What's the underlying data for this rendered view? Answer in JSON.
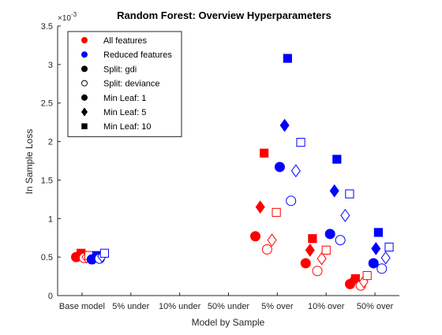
{
  "chart_data": {
    "type": "scatter",
    "title": "Random Forest: Overview Hyperparameters",
    "xlabel": "Model by Sample",
    "ylabel": "In Sample Loss",
    "y_exponent_label": "×10",
    "y_exponent_value": "-3",
    "categories": [
      "Base model",
      "5% under",
      "10% under",
      "50% under",
      "5% over",
      "10% over",
      "50% over"
    ],
    "x_ticks": [
      1,
      2,
      3,
      4,
      5,
      6,
      7
    ],
    "xlim": [
      0.5,
      7.5
    ],
    "ylim": [
      0,
      3.5
    ],
    "y_ticks": [
      0,
      0.5,
      1,
      1.5,
      2,
      2.5,
      3,
      3.5
    ],
    "y_tick_labels": [
      "0",
      "0.5",
      "1",
      "1.5",
      "2",
      "2.5",
      "3",
      "3.5"
    ],
    "grid": false,
    "legend_position": "top-left",
    "legend": [
      {
        "label": "All features",
        "marker": "circle",
        "filled": true,
        "color": "#ff0000"
      },
      {
        "label": "Reduced features",
        "marker": "circle",
        "filled": true,
        "color": "#0000ff"
      },
      {
        "label": "Split: gdi",
        "marker": "circle",
        "filled": true,
        "color": "#000000"
      },
      {
        "label": "Split: deviance",
        "marker": "circle",
        "filled": false,
        "color": "#000000"
      },
      {
        "label": "Min Leaf: 1",
        "marker": "circle",
        "filled": true,
        "color": "#000000"
      },
      {
        "label": "Min Leaf: 5",
        "marker": "diamond",
        "filled": true,
        "color": "#000000"
      },
      {
        "label": "Min Leaf: 10",
        "marker": "square",
        "filled": true,
        "color": "#000000"
      }
    ],
    "colors": {
      "all_features": "#ff0000",
      "reduced_features": "#0000ff"
    },
    "points": [
      {
        "x": 0.88,
        "y": 0.5,
        "features": "all",
        "split": "gdi",
        "leaf": 1
      },
      {
        "x": 0.93,
        "y": 0.52,
        "features": "all",
        "split": "gdi",
        "leaf": 5
      },
      {
        "x": 0.98,
        "y": 0.55,
        "features": "all",
        "split": "gdi",
        "leaf": 10
      },
      {
        "x": 1.04,
        "y": 0.49,
        "features": "all",
        "split": "deviance",
        "leaf": 1
      },
      {
        "x": 1.09,
        "y": 0.5,
        "features": "all",
        "split": "deviance",
        "leaf": 5
      },
      {
        "x": 1.14,
        "y": 0.52,
        "features": "all",
        "split": "deviance",
        "leaf": 10
      },
      {
        "x": 1.2,
        "y": 0.47,
        "features": "reduced",
        "split": "gdi",
        "leaf": 1
      },
      {
        "x": 1.25,
        "y": 0.49,
        "features": "reduced",
        "split": "gdi",
        "leaf": 5
      },
      {
        "x": 1.3,
        "y": 0.52,
        "features": "reduced",
        "split": "gdi",
        "leaf": 10
      },
      {
        "x": 1.36,
        "y": 0.48,
        "features": "reduced",
        "split": "deviance",
        "leaf": 1
      },
      {
        "x": 1.41,
        "y": 0.51,
        "features": "reduced",
        "split": "deviance",
        "leaf": 5
      },
      {
        "x": 1.46,
        "y": 0.55,
        "features": "reduced",
        "split": "deviance",
        "leaf": 10
      },
      {
        "x": 4.55,
        "y": 0.77,
        "features": "all",
        "split": "gdi",
        "leaf": 1
      },
      {
        "x": 4.65,
        "y": 1.15,
        "features": "all",
        "split": "gdi",
        "leaf": 5
      },
      {
        "x": 4.73,
        "y": 1.85,
        "features": "all",
        "split": "gdi",
        "leaf": 10
      },
      {
        "x": 4.79,
        "y": 0.6,
        "features": "all",
        "split": "deviance",
        "leaf": 1
      },
      {
        "x": 4.89,
        "y": 0.72,
        "features": "all",
        "split": "deviance",
        "leaf": 5
      },
      {
        "x": 4.98,
        "y": 1.08,
        "features": "all",
        "split": "deviance",
        "leaf": 10
      },
      {
        "x": 5.05,
        "y": 1.67,
        "features": "reduced",
        "split": "gdi",
        "leaf": 1
      },
      {
        "x": 5.15,
        "y": 2.21,
        "features": "reduced",
        "split": "gdi",
        "leaf": 5
      },
      {
        "x": 5.21,
        "y": 3.08,
        "features": "reduced",
        "split": "gdi",
        "leaf": 10
      },
      {
        "x": 5.28,
        "y": 1.23,
        "features": "reduced",
        "split": "deviance",
        "leaf": 1
      },
      {
        "x": 5.38,
        "y": 1.62,
        "features": "reduced",
        "split": "deviance",
        "leaf": 5
      },
      {
        "x": 5.48,
        "y": 1.99,
        "features": "reduced",
        "split": "deviance",
        "leaf": 10
      },
      {
        "x": 5.58,
        "y": 0.42,
        "features": "all",
        "split": "gdi",
        "leaf": 1
      },
      {
        "x": 5.67,
        "y": 0.59,
        "features": "all",
        "split": "gdi",
        "leaf": 5
      },
      {
        "x": 5.72,
        "y": 0.74,
        "features": "all",
        "split": "gdi",
        "leaf": 10
      },
      {
        "x": 5.82,
        "y": 0.32,
        "features": "all",
        "split": "deviance",
        "leaf": 1
      },
      {
        "x": 5.91,
        "y": 0.48,
        "features": "all",
        "split": "deviance",
        "leaf": 5
      },
      {
        "x": 6.0,
        "y": 0.59,
        "features": "all",
        "split": "deviance",
        "leaf": 10
      },
      {
        "x": 6.08,
        "y": 0.8,
        "features": "reduced",
        "split": "gdi",
        "leaf": 1
      },
      {
        "x": 6.17,
        "y": 1.36,
        "features": "reduced",
        "split": "gdi",
        "leaf": 5
      },
      {
        "x": 6.22,
        "y": 1.77,
        "features": "reduced",
        "split": "gdi",
        "leaf": 10
      },
      {
        "x": 6.29,
        "y": 0.72,
        "features": "reduced",
        "split": "deviance",
        "leaf": 1
      },
      {
        "x": 6.39,
        "y": 1.04,
        "features": "reduced",
        "split": "deviance",
        "leaf": 5
      },
      {
        "x": 6.48,
        "y": 1.32,
        "features": "reduced",
        "split": "deviance",
        "leaf": 10
      },
      {
        "x": 6.49,
        "y": 0.15,
        "features": "all",
        "split": "gdi",
        "leaf": 1
      },
      {
        "x": 6.55,
        "y": 0.19,
        "features": "all",
        "split": "gdi",
        "leaf": 5
      },
      {
        "x": 6.6,
        "y": 0.22,
        "features": "all",
        "split": "gdi",
        "leaf": 10
      },
      {
        "x": 6.71,
        "y": 0.13,
        "features": "all",
        "split": "deviance",
        "leaf": 1
      },
      {
        "x": 6.77,
        "y": 0.18,
        "features": "all",
        "split": "deviance",
        "leaf": 5
      },
      {
        "x": 6.84,
        "y": 0.26,
        "features": "all",
        "split": "deviance",
        "leaf": 10
      },
      {
        "x": 6.97,
        "y": 0.42,
        "features": "reduced",
        "split": "gdi",
        "leaf": 1
      },
      {
        "x": 7.02,
        "y": 0.61,
        "features": "reduced",
        "split": "gdi",
        "leaf": 5
      },
      {
        "x": 7.07,
        "y": 0.82,
        "features": "reduced",
        "split": "gdi",
        "leaf": 10
      },
      {
        "x": 7.14,
        "y": 0.35,
        "features": "reduced",
        "split": "deviance",
        "leaf": 1
      },
      {
        "x": 7.22,
        "y": 0.49,
        "features": "reduced",
        "split": "deviance",
        "leaf": 5
      },
      {
        "x": 7.29,
        "y": 0.63,
        "features": "reduced",
        "split": "deviance",
        "leaf": 10
      }
    ]
  }
}
